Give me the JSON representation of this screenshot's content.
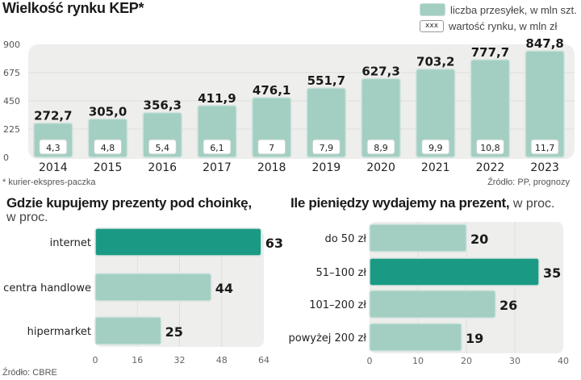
{
  "colors": {
    "bar_light": "#a3cfc3",
    "bar_highlight": "#1a9a85",
    "plot_bg": "#eeeeec",
    "grid": "#dddddb",
    "label_box": "#ffffff"
  },
  "chart_data": [
    {
      "type": "bar",
      "title": "Wielkość rynku KEP*",
      "categories": [
        "2014",
        "2015",
        "2016",
        "2017",
        "2018",
        "2019",
        "2020",
        "2021",
        "2022",
        "2023"
      ],
      "series": [
        {
          "name": "liczba przesyłek, w mln szt.",
          "values": [
            272.7,
            305.0,
            356.3,
            411.9,
            476.1,
            551.7,
            627.3,
            703.2,
            777.7,
            847.8
          ],
          "labels": [
            "272,7",
            "305,0",
            "356,3",
            "411,9",
            "476,1",
            "551,7",
            "627,3",
            "703,2",
            "777,7",
            "847,8"
          ]
        },
        {
          "name": "wartość rynku, w mln zł",
          "values": [
            4.3,
            4.8,
            5.4,
            6.1,
            7,
            7.9,
            8.9,
            9.9,
            10.8,
            11.7
          ],
          "labels": [
            "4,3",
            "4,8",
            "5,4",
            "6,1",
            "7",
            "7,9",
            "8,9",
            "9,9",
            "10,8",
            "11,7"
          ]
        }
      ],
      "ylim": [
        0,
        900
      ],
      "yticks": [
        "0",
        "225",
        "450",
        "675",
        "900"
      ],
      "grid": true,
      "legend": {
        "placement": "top-right",
        "items": [
          "liczba przesyłek, w mln szt.",
          "wartość rynku, w mln zł"
        ],
        "box_sample": "xxx"
      },
      "footnote": "* kurier-ekspres-paczka",
      "source": "Źródło: PP, prognozy"
    },
    {
      "type": "bar",
      "orientation": "horizontal",
      "title": "Gdzie kupujemy prezenty pod choinkę,",
      "subtitle": "w proc.",
      "categories": [
        "internet",
        "centra handlowe",
        "hipermarket"
      ],
      "values": [
        63,
        44,
        25
      ],
      "highlight_index": 0,
      "xlim": [
        0,
        64
      ],
      "xticks": [
        "0",
        "16",
        "32",
        "48",
        "64"
      ],
      "grid": true,
      "source": "Źródło: CBRE"
    },
    {
      "type": "bar",
      "orientation": "horizontal",
      "title": "Ile pieniędzy wydajemy na prezent,",
      "subtitle": "w proc.",
      "categories": [
        "do 50 zł",
        "51–100 zł",
        "101–200 zł",
        "powyżej 200 zł"
      ],
      "values": [
        20,
        35,
        26,
        19
      ],
      "highlight_index": 1,
      "xlim": [
        0,
        40
      ],
      "xticks": [
        "0",
        "10",
        "20",
        "30",
        "40"
      ],
      "grid": true
    }
  ]
}
